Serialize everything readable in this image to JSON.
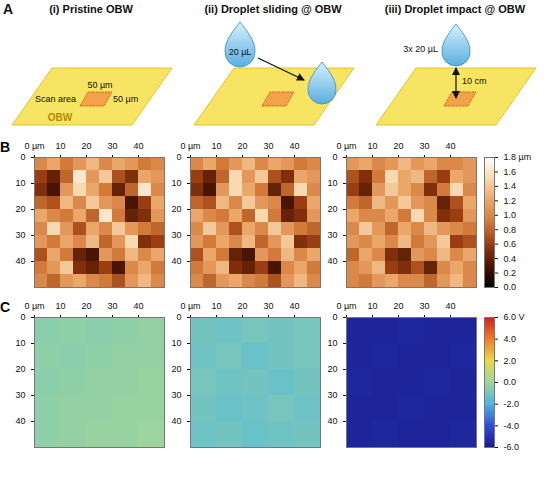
{
  "schematic": {
    "panel_label": "A",
    "columns": [
      {
        "title": "(i) Pristine OBW",
        "scan_area": "Scan area",
        "scan_width": "50 µm",
        "scan_height": "50 µm",
        "surface": "OBW"
      },
      {
        "title": "(ii) Droplet sliding @ OBW",
        "droplet": "20 µL"
      },
      {
        "title": "(iii) Droplet impact @ OBW",
        "droplet": "3x 20 µL",
        "height": "10 cm"
      }
    ]
  },
  "chart_data": [
    {
      "type": "heatmap",
      "panel_label": "B",
      "xlim": [
        0,
        50
      ],
      "ylim": [
        50,
        0
      ],
      "xticks": [
        {
          "value": 0,
          "label": "0 µm"
        },
        10,
        20,
        30,
        40
      ],
      "yticks": [
        0,
        10,
        20,
        30,
        40
      ],
      "colorbar": {
        "range": [
          0,
          1.8
        ],
        "ticks": [
          {
            "value": 0,
            "label": "0.0"
          },
          {
            "value": 0.2,
            "label": "0.2"
          },
          {
            "value": 0.4,
            "label": "0.4"
          },
          {
            "value": 0.6,
            "label": "0.6"
          },
          {
            "value": 0.8,
            "label": "0.8"
          },
          {
            "value": 1,
            "label": "1.0"
          },
          {
            "value": 1.2,
            "label": "1.2"
          },
          {
            "value": 1.4,
            "label": "1.4"
          },
          {
            "value": 1.6,
            "label": "1.6"
          },
          {
            "value": 1.8,
            "label": "1.8 µm"
          }
        ]
      },
      "maps": [
        {
          "cells": [
            [
              1.0,
              1.2,
              0.9,
              1.1,
              1.3,
              1.0,
              1.2,
              1.1,
              0.9,
              1.0
            ],
            [
              0.6,
              0.4,
              0.8,
              1.6,
              1.1,
              1.4,
              0.7,
              0.5,
              1.2,
              1.1
            ],
            [
              0.5,
              0.3,
              1.1,
              1.5,
              1.2,
              0.9,
              0.4,
              0.8,
              1.6,
              1.0
            ],
            [
              0.8,
              0.7,
              1.3,
              1.0,
              1.4,
              1.1,
              1.0,
              0.3,
              0.6,
              1.2
            ],
            [
              1.2,
              1.0,
              0.9,
              1.2,
              0.8,
              1.6,
              0.9,
              0.4,
              0.5,
              1.1
            ],
            [
              1.0,
              1.5,
              1.1,
              0.7,
              1.2,
              1.0,
              1.4,
              1.1,
              0.9,
              0.8
            ],
            [
              1.1,
              0.9,
              1.2,
              1.0,
              1.3,
              0.8,
              1.1,
              1.5,
              0.5,
              0.6
            ],
            [
              0.7,
              1.2,
              0.9,
              0.4,
              0.3,
              1.1,
              0.9,
              1.3,
              1.0,
              1.2
            ],
            [
              0.9,
              1.1,
              1.4,
              0.5,
              0.4,
              0.6,
              0.3,
              1.0,
              1.2,
              0.9
            ],
            [
              1.0,
              0.8,
              1.1,
              1.2,
              1.0,
              0.9,
              0.7,
              1.1,
              1.3,
              1.0
            ]
          ]
        },
        {
          "cells": [
            [
              1.0,
              1.2,
              0.9,
              1.1,
              1.3,
              1.0,
              1.2,
              1.1,
              0.9,
              1.0
            ],
            [
              0.6,
              0.4,
              0.8,
              1.5,
              1.1,
              1.4,
              0.7,
              0.5,
              1.2,
              1.1
            ],
            [
              0.5,
              0.3,
              1.1,
              1.5,
              1.2,
              0.9,
              0.4,
              0.8,
              1.5,
              1.0
            ],
            [
              0.8,
              0.7,
              1.3,
              1.0,
              1.4,
              1.1,
              1.0,
              0.3,
              0.6,
              1.2
            ],
            [
              1.2,
              1.0,
              0.9,
              1.2,
              0.8,
              1.5,
              0.9,
              0.4,
              0.5,
              1.1
            ],
            [
              1.0,
              1.4,
              1.1,
              0.7,
              1.2,
              1.0,
              1.4,
              1.1,
              0.9,
              0.8
            ],
            [
              1.1,
              0.9,
              1.2,
              1.0,
              1.3,
              0.8,
              1.1,
              1.4,
              0.5,
              0.6
            ],
            [
              0.7,
              1.2,
              0.9,
              0.4,
              0.3,
              1.1,
              0.9,
              1.3,
              1.0,
              1.2
            ],
            [
              0.9,
              1.1,
              1.3,
              0.5,
              0.4,
              0.6,
              0.3,
              1.0,
              1.2,
              0.9
            ],
            [
              1.0,
              0.8,
              1.1,
              1.2,
              1.0,
              0.9,
              0.7,
              1.1,
              1.3,
              1.0
            ]
          ]
        },
        {
          "cells": [
            [
              1.1,
              1.2,
              1.0,
              1.1,
              1.3,
              1.1,
              1.2,
              1.0,
              1.0,
              1.1
            ],
            [
              0.7,
              0.5,
              0.9,
              1.5,
              1.2,
              1.3,
              0.8,
              0.6,
              1.2,
              1.1
            ],
            [
              0.6,
              0.4,
              1.1,
              1.4,
              1.2,
              1.0,
              0.5,
              0.9,
              1.5,
              1.0
            ],
            [
              0.9,
              0.8,
              1.3,
              1.1,
              1.4,
              1.1,
              1.0,
              0.4,
              0.7,
              1.2
            ],
            [
              1.2,
              1.0,
              1.0,
              1.2,
              0.9,
              1.5,
              1.0,
              0.5,
              0.6,
              1.1
            ],
            [
              1.0,
              1.4,
              1.1,
              0.8,
              1.2,
              1.0,
              1.3,
              1.1,
              1.0,
              0.9
            ],
            [
              1.1,
              1.0,
              1.2,
              1.0,
              1.3,
              0.9,
              1.1,
              1.4,
              0.6,
              0.7
            ],
            [
              0.8,
              1.2,
              1.0,
              0.5,
              0.4,
              1.1,
              1.0,
              1.3,
              1.0,
              1.2
            ],
            [
              1.0,
              1.1,
              1.3,
              0.6,
              0.5,
              0.7,
              0.4,
              1.0,
              1.2,
              1.0
            ],
            [
              1.0,
              0.9,
              1.1,
              1.2,
              1.0,
              1.0,
              0.8,
              1.1,
              1.3,
              1.0
            ]
          ]
        }
      ]
    },
    {
      "type": "heatmap",
      "panel_label": "C",
      "xlim": [
        0,
        50
      ],
      "ylim": [
        50,
        0
      ],
      "xticks": [
        {
          "value": 0,
          "label": "0 µm"
        },
        10,
        20,
        30,
        40
      ],
      "yticks": [
        0,
        10,
        20,
        30,
        40
      ],
      "colorbar": {
        "range": [
          -6,
          6
        ],
        "ticks": [
          {
            "value": 6,
            "label": "6.0 V"
          },
          {
            "value": 4,
            "label": "4.0"
          },
          {
            "value": 2,
            "label": "2.0"
          },
          {
            "value": 0,
            "label": "0.0"
          },
          {
            "value": -2,
            "label": "-2.0"
          },
          {
            "value": -4,
            "label": "-4.0"
          },
          {
            "value": -6,
            "label": "-6.0"
          }
        ]
      },
      "maps": [
        {
          "cells": [
            [
              -0.5,
              -0.4,
              -0.5,
              -0.4,
              -0.3
            ],
            [
              -0.4,
              -0.5,
              -0.4,
              -0.3,
              -0.3
            ],
            [
              -0.5,
              -0.4,
              -0.3,
              -0.3,
              -0.2
            ],
            [
              -0.4,
              -0.3,
              -0.3,
              -0.2,
              -0.2
            ],
            [
              -0.4,
              -0.3,
              -0.2,
              -0.2,
              -0.1
            ]
          ]
        },
        {
          "cells": [
            [
              -1.1,
              -1.2,
              -1.0,
              -1.1,
              -1.0
            ],
            [
              -1.2,
              -1.0,
              -1.3,
              -1.1,
              -1.0
            ],
            [
              -1.0,
              -1.2,
              -1.1,
              -1.3,
              -1.1
            ],
            [
              -1.1,
              -1.3,
              -1.2,
              -1.0,
              -1.2
            ],
            [
              -1.2,
              -1.1,
              -1.3,
              -1.2,
              -1.1
            ]
          ]
        },
        {
          "cells": [
            [
              -5.6,
              -5.6,
              -5.5,
              -5.6,
              -5.6
            ],
            [
              -5.6,
              -5.5,
              -5.6,
              -5.6,
              -5.5
            ],
            [
              -5.5,
              -5.6,
              -5.6,
              -5.5,
              -5.6
            ],
            [
              -5.6,
              -5.6,
              -5.5,
              -5.6,
              -5.6
            ],
            [
              -5.6,
              -5.5,
              -5.6,
              -5.6,
              -5.5
            ]
          ]
        }
      ]
    }
  ]
}
